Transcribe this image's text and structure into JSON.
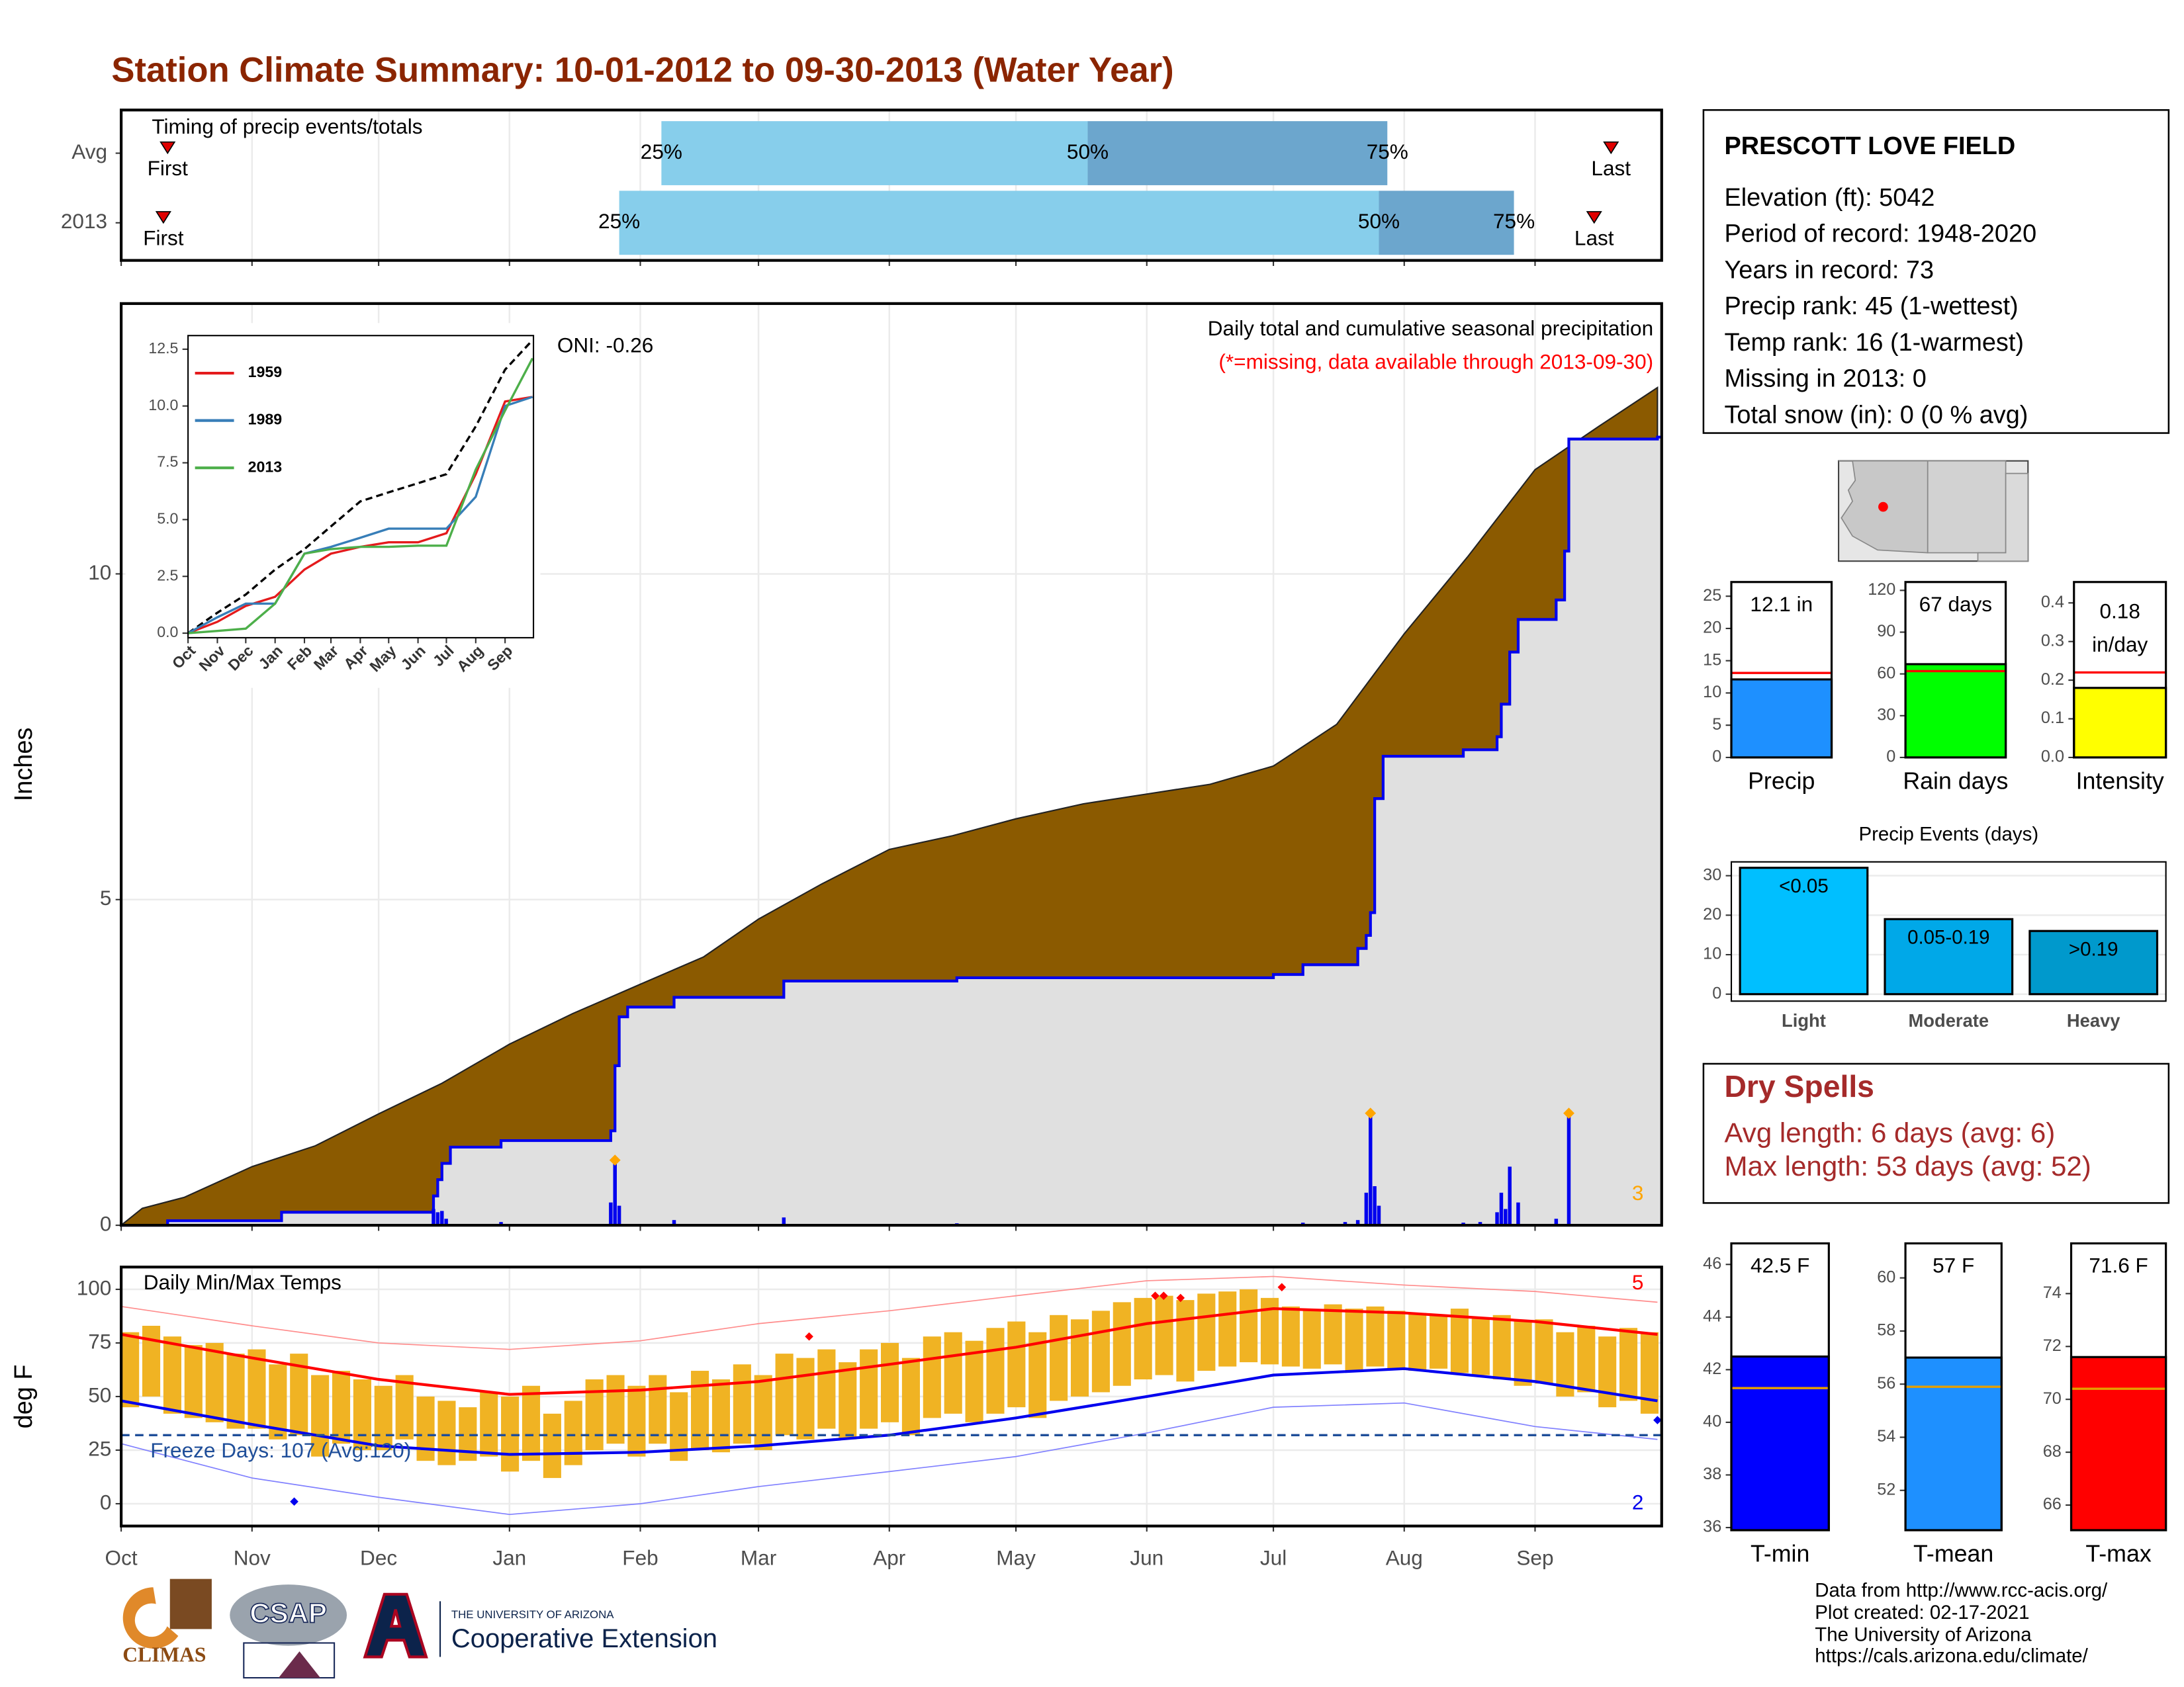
{
  "title": "Station Climate Summary: 10-01-2012 to 09-30-2013 (Water Year)",
  "chart_data": [
    {
      "type": "timing",
      "title": "Timing of precip events/totals",
      "categories": [
        "Avg",
        "2013"
      ],
      "xlim": [
        0,
        365
      ],
      "xgrid": [
        0,
        31,
        61,
        92,
        123,
        151,
        182,
        212,
        243,
        273,
        304,
        335
      ],
      "grid": true,
      "first": [
        11,
        10
      ],
      "p25": [
        128,
        118
      ],
      "p50": [
        229,
        298
      ],
      "p75": [
        300,
        330
      ],
      "last": [
        353,
        349
      ],
      "labels": {
        "first": "First",
        "p25": "25%",
        "p50": "50%",
        "p75": "75%",
        "last": "Last"
      },
      "colors": {
        "early": "#87ceeb",
        "late": "#6ca6cd",
        "marker": "#e00000"
      }
    },
    {
      "type": "precip",
      "y_label": "Inches",
      "annotation": "Daily total and cumulative seasonal precipitation",
      "missing_note": "(*=missing, data available through 2013-09-30)",
      "oni": "ONI: -0.26",
      "extreme_count": 3,
      "xlim": [
        0,
        365
      ],
      "xgrid": [
        0,
        31,
        61,
        92,
        123,
        151,
        182,
        212,
        243,
        273,
        304,
        335
      ],
      "ylim": [
        0,
        14.15
      ],
      "yticks": [
        0,
        5,
        10
      ],
      "grid": true,
      "average": {
        "color": "#8b5a00",
        "x": [
          0,
          5,
          15,
          31,
          46,
          61,
          76,
          92,
          107,
          123,
          138,
          151,
          166,
          182,
          197,
          212,
          228,
          243,
          258,
          273,
          288,
          304,
          319,
          335,
          350,
          364
        ],
        "values": [
          0,
          0.26,
          0.43,
          0.9,
          1.22,
          1.71,
          2.18,
          2.78,
          3.25,
          3.7,
          4.12,
          4.7,
          5.24,
          5.77,
          5.98,
          6.24,
          6.47,
          6.62,
          6.77,
          7.05,
          7.69,
          9.08,
          10.26,
          11.6,
          12.26,
          12.86
        ]
      },
      "cumulative": {
        "color": "#0000ee",
        "fill": "#e0e0e0",
        "x": [
          0,
          11,
          38,
          74,
          75,
          76,
          78,
          90,
          116,
          117,
          118,
          120,
          131,
          157,
          198,
          273,
          280,
          293,
          295,
          296,
          297,
          299,
          318,
          326,
          327,
          329,
          331,
          340,
          342,
          343,
          364
        ],
        "values": [
          0,
          0.07,
          0.2,
          0.45,
          0.7,
          0.95,
          1.2,
          1.3,
          1.45,
          2.45,
          3.2,
          3.35,
          3.5,
          3.75,
          3.8,
          3.85,
          4.0,
          4.25,
          4.45,
          4.8,
          6.55,
          7.2,
          7.3,
          7.5,
          8.0,
          8.8,
          9.3,
          9.6,
          10.35,
          12.07,
          12.1
        ]
      },
      "daily": {
        "color": "#0000ee",
        "x": [
          74,
          75,
          76,
          77,
          90,
          116,
          117,
          118,
          131,
          157,
          198,
          273,
          280,
          290,
          293,
          295,
          296,
          297,
          298,
          318,
          322,
          326,
          327,
          328,
          329,
          331,
          340,
          343
        ],
        "values": [
          0.25,
          0.2,
          0.22,
          0.1,
          0.05,
          0.35,
          1.0,
          0.3,
          0.08,
          0.12,
          0.03,
          0.02,
          0.04,
          0.05,
          0.08,
          0.5,
          1.72,
          0.6,
          0.3,
          0.04,
          0.05,
          0.2,
          0.5,
          0.25,
          0.9,
          0.35,
          0.1,
          1.72
        ]
      },
      "extremes": {
        "color": "#ffa500",
        "x": [
          117,
          296,
          343
        ],
        "values": [
          1.0,
          1.72,
          1.72
        ]
      }
    },
    {
      "type": "line",
      "xlim": [
        0,
        365
      ],
      "xticks": [
        {
          "value": 0,
          "label": "Oct"
        },
        {
          "value": 31,
          "label": "Nov"
        },
        {
          "value": 61,
          "label": "Dec"
        },
        {
          "value": 92,
          "label": "Jan"
        },
        {
          "value": 123,
          "label": "Feb"
        },
        {
          "value": 151,
          "label": "Mar"
        },
        {
          "value": 182,
          "label": "Apr"
        },
        {
          "value": 212,
          "label": "May"
        },
        {
          "value": 243,
          "label": "Jun"
        },
        {
          "value": 273,
          "label": "Jul"
        },
        {
          "value": 304,
          "label": "Aug"
        },
        {
          "value": 335,
          "label": "Sep"
        }
      ],
      "ylim": [
        -0.2,
        13.1
      ],
      "yticks": [
        {
          "value": 0,
          "label": "0.0"
        },
        2.5,
        {
          "value": 5,
          "label": "5.0"
        },
        7.5,
        {
          "value": 10,
          "label": "10.0"
        },
        12.5
      ],
      "grid": false,
      "x": [
        0,
        31,
        61,
        92,
        123,
        151,
        182,
        212,
        243,
        273,
        304,
        335,
        364
      ],
      "average": {
        "color": "#000000",
        "values": [
          0,
          0.9,
          1.7,
          2.8,
          3.7,
          4.7,
          5.8,
          6.2,
          6.6,
          7.0,
          9.1,
          11.6,
          12.9
        ]
      },
      "series": [
        {
          "name": "1959",
          "color": "#e41a1c",
          "values": [
            0,
            0.5,
            1.2,
            1.6,
            2.8,
            3.5,
            3.8,
            4.0,
            4.0,
            4.4,
            7.0,
            10.2,
            10.4
          ]
        },
        {
          "name": "1989",
          "color": "#377eb8",
          "values": [
            0,
            0.7,
            1.3,
            1.3,
            3.5,
            3.8,
            4.2,
            4.6,
            4.6,
            4.6,
            6.0,
            10.0,
            10.4
          ]
        },
        {
          "name": "2013",
          "color": "#4daf4a",
          "values": [
            0,
            0.1,
            0.2,
            1.3,
            3.5,
            3.7,
            3.8,
            3.8,
            3.85,
            3.85,
            7.2,
            9.8,
            12.1
          ]
        }
      ]
    },
    {
      "type": "temp",
      "title": "Daily Min/Max Temps",
      "y_label": "deg F",
      "freeze_label": "Freeze Days: 107 (Avg:120)",
      "freeze_line": 32,
      "freeze_color": "#1f4e99",
      "record_high_count": 5,
      "record_low_count": 2,
      "xlim": [
        0,
        365
      ],
      "xticks": [
        {
          "value": 0,
          "label": "Oct"
        },
        {
          "value": 31,
          "label": "Nov"
        },
        {
          "value": 61,
          "label": "Dec"
        },
        {
          "value": 92,
          "label": "Jan"
        },
        {
          "value": 123,
          "label": "Feb"
        },
        {
          "value": 151,
          "label": "Mar"
        },
        {
          "value": 182,
          "label": "Apr"
        },
        {
          "value": 212,
          "label": "May"
        },
        {
          "value": 243,
          "label": "Jun"
        },
        {
          "value": 273,
          "label": "Jul"
        },
        {
          "value": 304,
          "label": "Aug"
        },
        {
          "value": 335,
          "label": "Sep"
        }
      ],
      "ylim": [
        -10.4,
        110.4
      ],
      "yticks": [
        0,
        25,
        50,
        75,
        100
      ],
      "grid": true,
      "bars": {
        "color": "#f0b323",
        "x": [
          0,
          5,
          10,
          15,
          20,
          25,
          30,
          35,
          40,
          45,
          50,
          55,
          60,
          65,
          70,
          75,
          80,
          85,
          90,
          95,
          100,
          105,
          110,
          115,
          120,
          125,
          130,
          135,
          140,
          145,
          150,
          155,
          160,
          165,
          170,
          175,
          180,
          185,
          190,
          195,
          200,
          205,
          210,
          215,
          220,
          225,
          230,
          235,
          240,
          245,
          250,
          255,
          260,
          265,
          270,
          275,
          280,
          285,
          290,
          295,
          300,
          305,
          310,
          315,
          320,
          325,
          330,
          335,
          340,
          345,
          350,
          355,
          360
        ],
        "low": [
          45,
          50,
          42,
          40,
          38,
          35,
          35,
          30,
          32,
          22,
          28,
          25,
          25,
          30,
          20,
          18,
          20,
          22,
          15,
          20,
          12,
          18,
          25,
          28,
          22,
          28,
          20,
          25,
          24,
          28,
          25,
          32,
          30,
          35,
          30,
          35,
          38,
          32,
          40,
          42,
          38,
          42,
          45,
          40,
          48,
          50,
          52,
          55,
          58,
          60,
          57,
          62,
          64,
          66,
          65,
          64,
          63,
          65,
          62,
          64,
          63,
          62,
          63,
          61,
          60,
          58,
          55,
          56,
          50,
          52,
          45,
          48,
          42
        ],
        "high": [
          80,
          83,
          78,
          74,
          75,
          70,
          72,
          65,
          70,
          60,
          62,
          58,
          55,
          60,
          50,
          48,
          45,
          52,
          50,
          55,
          42,
          48,
          58,
          60,
          55,
          60,
          52,
          62,
          58,
          65,
          60,
          70,
          68,
          72,
          66,
          72,
          75,
          68,
          78,
          80,
          76,
          82,
          85,
          80,
          88,
          86,
          90,
          94,
          96,
          97,
          95,
          98,
          99,
          100,
          96,
          92,
          90,
          93,
          91,
          92,
          90,
          89,
          88,
          91,
          87,
          88,
          85,
          86,
          80,
          83,
          78,
          82,
          80
        ]
      },
      "x": [
        0,
        31,
        61,
        92,
        123,
        151,
        182,
        212,
        243,
        273,
        304,
        335,
        364
      ],
      "avg_high": {
        "color": "#ff0000",
        "values": [
          79,
          68,
          58,
          51,
          53,
          57,
          65,
          73,
          84,
          91,
          89,
          85,
          79
        ]
      },
      "avg_low": {
        "color": "#0000ee",
        "values": [
          48,
          37,
          27,
          23,
          24,
          27,
          32,
          40,
          50,
          60,
          63,
          57,
          48
        ]
      },
      "record_high": {
        "color": "#ff8c8c",
        "values": [
          92,
          83,
          75,
          72,
          76,
          84,
          90,
          97,
          104,
          106,
          102,
          99,
          94
        ]
      },
      "record_low": {
        "color": "#8080ff",
        "values": [
          28,
          12,
          3,
          -5,
          0,
          8,
          15,
          22,
          33,
          45,
          47,
          36,
          30
        ]
      },
      "record_high_days": {
        "color": "#ff0000",
        "x": [
          163,
          245,
          247,
          251,
          275
        ],
        "values": [
          78,
          97,
          97,
          96,
          101
        ]
      },
      "record_low_days": {
        "color": "#0000ee",
        "x": [
          41,
          364
        ],
        "values": [
          1,
          39
        ]
      }
    },
    {
      "type": "summary_bar",
      "category": "Precip",
      "values": [
        12.1
      ],
      "value_labels": [
        "12.1 in"
      ],
      "average": 13.1,
      "avg_color": "#ff0000",
      "color": "#1e90ff",
      "ylim": [
        0,
        27.2
      ],
      "yticks": [
        0,
        5,
        10,
        15,
        20,
        25
      ]
    },
    {
      "type": "summary_bar",
      "category": "Rain days",
      "values": [
        67
      ],
      "value_labels": [
        "67 days"
      ],
      "average": 62,
      "avg_color": "#ff0000",
      "color": "#00ff00",
      "ylim": [
        0,
        126
      ],
      "yticks": [
        0,
        30,
        60,
        90,
        120
      ]
    },
    {
      "type": "summary_bar",
      "category": "Intensity",
      "values": [
        0.18
      ],
      "value_labels": [
        "0.18"
      ],
      "unit": "in/day",
      "average": 0.22,
      "avg_color": "#ff0000",
      "color": "#ffff00",
      "ylim": [
        0,
        0.454
      ],
      "yticks": [
        {
          "value": 0,
          "label": "0.0"
        },
        0.1,
        0.2,
        0.3,
        0.4
      ]
    },
    {
      "type": "bar",
      "title": "Precip Events (days)",
      "categories": [
        "Light",
        "Moderate",
        "Heavy"
      ],
      "bar_labels": [
        "<0.05",
        "0.05-0.19",
        ">0.19"
      ],
      "values": [
        32,
        19,
        16
      ],
      "colors": [
        "#00bfff",
        "#00a8e8",
        "#0099cc"
      ],
      "ylim": [
        -1.76,
        33.5
      ],
      "yticks": [
        0,
        10,
        20,
        30
      ],
      "grid": true
    },
    {
      "type": "summary_bar",
      "category": "T-min",
      "values": [
        42.5
      ],
      "value_labels": [
        "42.5 F"
      ],
      "average": 41.3,
      "avg_color": "#e69f00",
      "color": "#0000ff",
      "ylim": [
        35.9,
        46.8
      ],
      "yticks": [
        36,
        38,
        40,
        42,
        44,
        46
      ]
    },
    {
      "type": "summary_bar",
      "category": "T-mean",
      "values": [
        57
      ],
      "value_labels": [
        "57 F"
      ],
      "average": 55.9,
      "avg_color": "#e69f00",
      "color": "#1e90ff",
      "ylim": [
        50.5,
        61.3
      ],
      "yticks": [
        52,
        54,
        56,
        58,
        60
      ]
    },
    {
      "type": "summary_bar",
      "category": "T-max",
      "values": [
        71.6
      ],
      "value_labels": [
        "71.6 F"
      ],
      "average": 70.4,
      "avg_color": "#e69f00",
      "color": "#ff0000",
      "ylim": [
        65.05,
        75.9
      ],
      "yticks": [
        66,
        68,
        70,
        72,
        74
      ]
    }
  ],
  "station": {
    "name": "PRESCOTT LOVE FIELD",
    "lines": [
      "Elevation (ft): 5042",
      "Period of record: 1948-2020",
      "Years in record: 73",
      "Precip rank: 45 (1-wettest)",
      "Temp rank: 16 (1-warmest)",
      "Missing in 2013: 0",
      "Total snow (in): 0 (0 % avg)"
    ]
  },
  "dry_spells": {
    "title": "Dry Spells",
    "lines": [
      "Avg length: 6 days (avg: 6)",
      "Max length: 53 days (avg: 52)"
    ]
  },
  "credits": [
    "Data from http://www.rcc-acis.org/",
    "Plot created: 02-17-2021",
    "The University of Arizona",
    "https://cals.arizona.edu/climate/"
  ],
  "logos": {
    "climas": "CLIMAS",
    "csap": "CSAP",
    "university": "THE UNIVERSITY OF ARIZONA",
    "extension": "Cooperative Extension"
  }
}
